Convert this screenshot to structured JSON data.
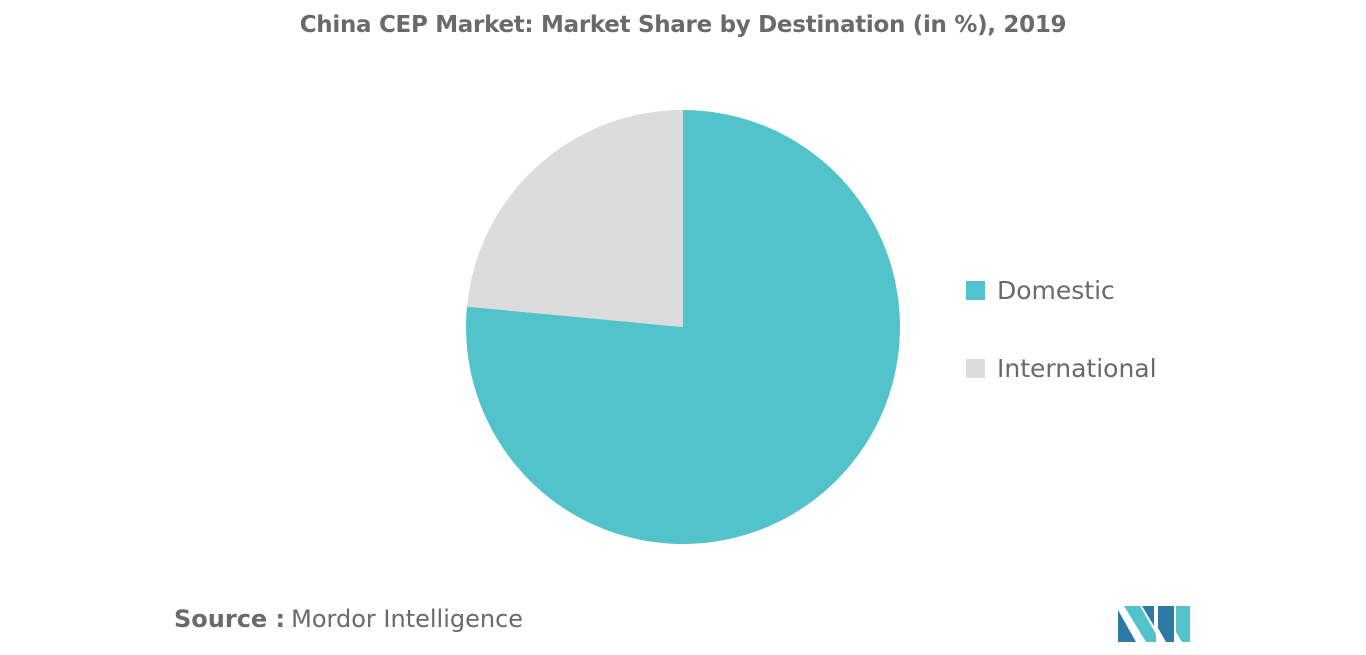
{
  "chart_data": {
    "type": "pie",
    "title": "China CEP Market: Market Share by Destination (in %), 2019",
    "categories": [
      "Domestic",
      "International"
    ],
    "values": [
      76.5,
      23.5
    ],
    "colors": [
      "#52C3CA",
      "#DCDCDC"
    ],
    "start_angle_deg": 0,
    "direction": "clockwise",
    "legend_position": "right"
  },
  "source": {
    "label": "Source :",
    "text": "Mordor Intelligence"
  },
  "logo": {
    "icon": "mordor-intelligence-logo-icon",
    "colors": [
      "#2E7AA6",
      "#52C3CA"
    ]
  }
}
